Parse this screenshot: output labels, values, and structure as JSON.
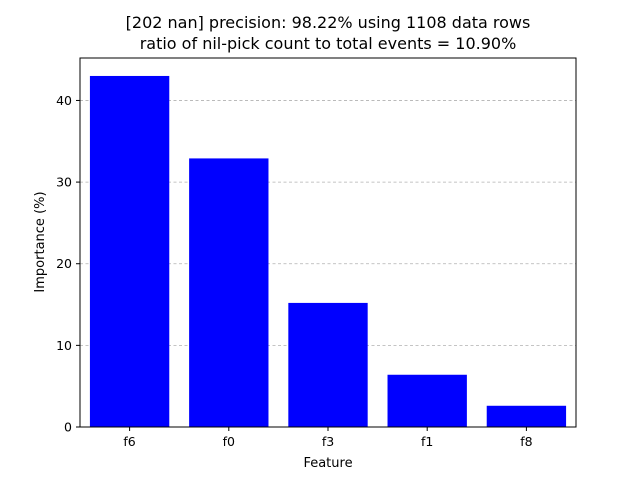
{
  "chart_data": {
    "type": "bar",
    "title_line1": "[202 nan] precision: 98.22% using 1108 data rows",
    "title_line2": "ratio of nil-pick count to total events = 10.90%",
    "xlabel": "Feature",
    "ylabel": "Importance (%)",
    "categories": [
      "f6",
      "f0",
      "f3",
      "f1",
      "f8"
    ],
    "values": [
      43.0,
      32.9,
      15.2,
      6.4,
      2.6
    ],
    "ylim": [
      0,
      45.2
    ],
    "yticks": [
      0,
      10,
      20,
      30,
      40
    ],
    "grid": "y-dashed",
    "bar_color": "#0000ff",
    "grid_color": "#b0b0b0"
  }
}
